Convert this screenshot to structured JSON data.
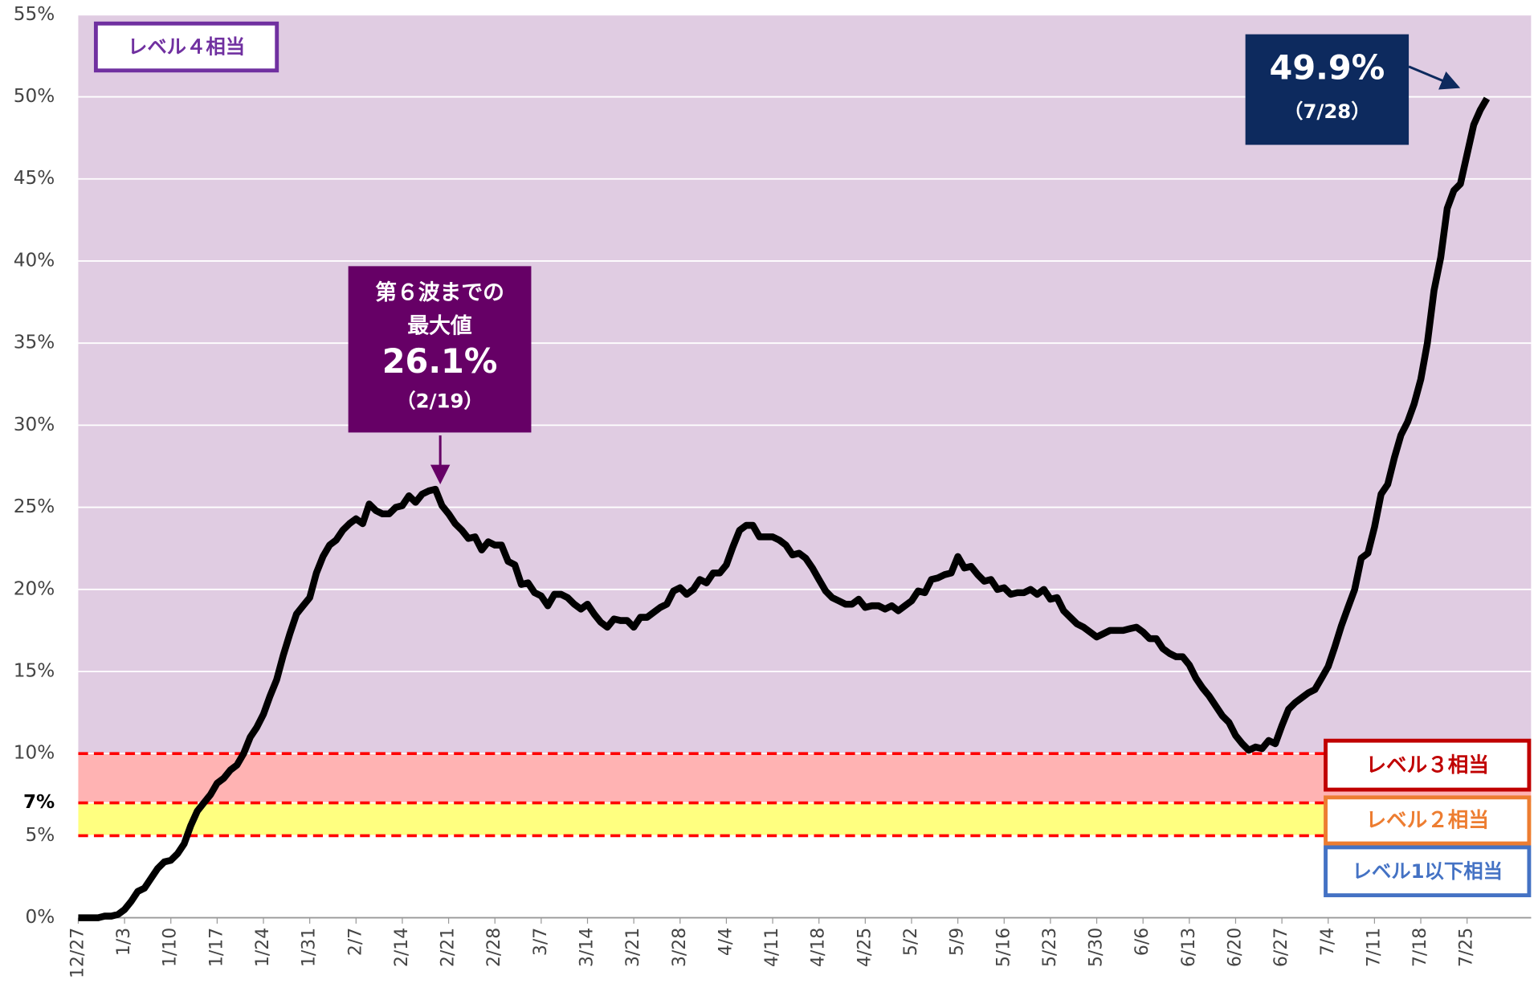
{
  "chart_data": {
    "type": "line",
    "color": "#000000",
    "categories": [
      "12/27",
      null,
      null,
      null,
      null,
      null,
      null,
      "1/3",
      null,
      null,
      null,
      null,
      null,
      null,
      "1/10",
      null,
      null,
      null,
      null,
      null,
      null,
      "1/17",
      null,
      null,
      null,
      null,
      null,
      null,
      "1/24",
      null,
      null,
      null,
      null,
      null,
      null,
      "1/31",
      null,
      null,
      null,
      null,
      null,
      null,
      "2/7",
      null,
      null,
      null,
      null,
      null,
      null,
      "2/14",
      null,
      null,
      null,
      null,
      null,
      null,
      "2/21",
      null,
      null,
      null,
      null,
      null,
      null,
      "2/28",
      null,
      null,
      null,
      null,
      null,
      null,
      "3/7",
      null,
      null,
      null,
      null,
      null,
      null,
      "3/14",
      null,
      null,
      null,
      null,
      null,
      null,
      "3/21",
      null,
      null,
      null,
      null,
      null,
      null,
      "3/28",
      null,
      null,
      null,
      null,
      null,
      null,
      "4/4",
      null,
      null,
      null,
      null,
      null,
      null,
      "4/11",
      null,
      null,
      null,
      null,
      null,
      null,
      "4/18",
      null,
      null,
      null,
      null,
      null,
      null,
      "4/25",
      null,
      null,
      null,
      null,
      null,
      null,
      "5/2",
      null,
      null,
      null,
      null,
      null,
      null,
      "5/9",
      null,
      null,
      null,
      null,
      null,
      null,
      "5/16",
      null,
      null,
      null,
      null,
      null,
      null,
      "5/23",
      null,
      null,
      null,
      null,
      null,
      null,
      "5/30",
      null,
      null,
      null,
      null,
      null,
      null,
      "6/6",
      null,
      null,
      null,
      null,
      null,
      null,
      "6/13",
      null,
      null,
      null,
      null,
      null,
      null,
      "6/20",
      null,
      null,
      null,
      null,
      null,
      null,
      "6/27",
      null,
      null,
      null,
      null,
      null,
      null,
      "7/4",
      null,
      null,
      null,
      null,
      null,
      null,
      "7/11",
      null,
      null,
      null,
      null,
      null,
      null,
      "7/18",
      null,
      null,
      null,
      null,
      null,
      null,
      "7/25",
      null,
      null,
      null
    ],
    "values": [
      0,
      0,
      0,
      0,
      0.1,
      0.1,
      0.2,
      0.5,
      1.0,
      1.6,
      1.8,
      2.4,
      3.0,
      3.4,
      3.5,
      3.9,
      4.5,
      5.6,
      6.5,
      7.0,
      7.5,
      8.2,
      8.5,
      9.0,
      9.3,
      10.0,
      11.0,
      11.6,
      12.4,
      13.5,
      14.5,
      16.0,
      17.3,
      18.5,
      19.0,
      19.5,
      21.0,
      22.0,
      22.7,
      23.0,
      23.6,
      24.0,
      24.3,
      24.0,
      25.2,
      24.8,
      24.6,
      24.6,
      25.0,
      25.1,
      25.7,
      25.3,
      25.8,
      26.0,
      26.1,
      25.1,
      24.6,
      24.0,
      23.6,
      23.1,
      23.2,
      22.4,
      22.9,
      22.7,
      22.7,
      21.7,
      21.5,
      20.3,
      20.4,
      19.8,
      19.6,
      19.0,
      19.7,
      19.7,
      19.5,
      19.1,
      18.8,
      19.1,
      18.5,
      18.0,
      17.7,
      18.2,
      18.1,
      18.1,
      17.7,
      18.3,
      18.3,
      18.6,
      18.9,
      19.1,
      19.9,
      20.1,
      19.7,
      20.0,
      20.6,
      20.4,
      21.0,
      21.0,
      21.5,
      22.6,
      23.6,
      23.9,
      23.9,
      23.2,
      23.2,
      23.2,
      23.0,
      22.7,
      22.1,
      22.2,
      21.9,
      21.3,
      20.6,
      19.9,
      19.5,
      19.3,
      19.1,
      19.1,
      19.4,
      18.9,
      19.0,
      19.0,
      18.8,
      19.0,
      18.7,
      19.0,
      19.3,
      19.9,
      19.8,
      20.6,
      20.7,
      20.9,
      21.0,
      22.0,
      21.3,
      21.4,
      20.9,
      20.5,
      20.6,
      20.0,
      20.1,
      19.7,
      19.8,
      19.8,
      20.0,
      19.7,
      20.0,
      19.4,
      19.5,
      18.7,
      18.3,
      17.9,
      17.7,
      17.4,
      17.1,
      17.3,
      17.5,
      17.5,
      17.5,
      17.6,
      17.7,
      17.4,
      17.0,
      17.0,
      16.4,
      16.1,
      15.9,
      15.9,
      15.4,
      14.6,
      14.0,
      13.5,
      12.9,
      12.3,
      11.9,
      11.1,
      10.6,
      10.2,
      10.4,
      10.3,
      10.8,
      10.6,
      11.7,
      12.7,
      13.1,
      13.4,
      13.7,
      13.9,
      14.6,
      15.3,
      16.5,
      17.8,
      18.9,
      20.0,
      21.9,
      22.2,
      23.8,
      25.8,
      26.4,
      28.0,
      29.4,
      30.2,
      31.3,
      32.8,
      35.0,
      38.2,
      40.2,
      43.2,
      44.3,
      44.7,
      46.5,
      48.3,
      49.2,
      49.9
    ],
    "ylim": [
      0,
      55
    ],
    "yticks": [
      {
        "value": 0,
        "label": "0%"
      },
      {
        "value": 5,
        "label": "5%"
      },
      {
        "value": 7,
        "label": "7%"
      },
      {
        "value": 10,
        "label": "10%"
      },
      {
        "value": 15,
        "label": "15%"
      },
      {
        "value": 20,
        "label": "20%"
      },
      {
        "value": 25,
        "label": "25%"
      },
      {
        "value": 30,
        "label": "30%"
      },
      {
        "value": 35,
        "label": "35%"
      },
      {
        "value": 40,
        "label": "40%"
      },
      {
        "value": 45,
        "label": "45%"
      },
      {
        "value": 50,
        "label": "50%"
      },
      {
        "value": 55,
        "label": "55%"
      }
    ],
    "grid": true,
    "bands": [
      {
        "from": 10,
        "to": 55,
        "color": "#e0cce2",
        "label": "レベル４相当",
        "label_color": "#7030a0"
      },
      {
        "from": 7,
        "to": 10,
        "color": "#ffb3b3",
        "label": "レベル３相当",
        "label_color": "#c00000"
      },
      {
        "from": 5,
        "to": 7,
        "color": "#ffff80",
        "label": "レベル２相当",
        "label_color": "#ed7d31"
      },
      {
        "from": 0,
        "to": 5,
        "color": "#ffffff",
        "label": "レベル1以下相当",
        "label_color": "#4472c4"
      }
    ],
    "annotations": [
      {
        "lines": [
          "第６波までの",
          "最大値",
          "26.1%",
          "（2/19）"
        ],
        "color": "#660066"
      },
      {
        "lines": [
          "49.9%",
          "（7/28）"
        ],
        "color": "#0d2a5e"
      }
    ]
  }
}
